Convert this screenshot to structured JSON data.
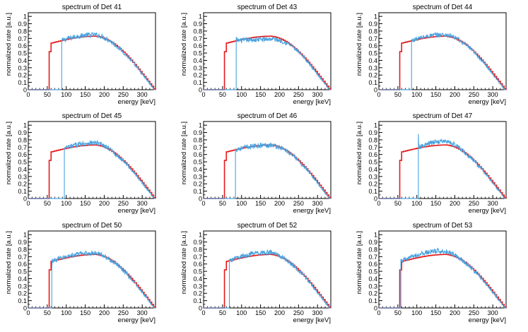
{
  "figure": {
    "background": "#ffffff"
  },
  "chart_data": [
    {
      "type": "line",
      "title": "spectrum of Det 41",
      "xlabel": "energy [keV]",
      "ylabel": "normalized rate [a.u.]",
      "xlim": [
        0,
        335
      ],
      "ylim": [
        0,
        1.05
      ],
      "x_ticks": [
        0,
        50,
        100,
        150,
        200,
        250,
        300
      ],
      "y_ticks": [
        0,
        0.1,
        0.2,
        0.3,
        0.4,
        0.5,
        0.6,
        0.7,
        0.8,
        0.9,
        1
      ],
      "grid": false,
      "series": [
        {
          "color": "#e41a1c",
          "style": "step",
          "cutoff_keV": 55,
          "cutoff_height": 0.52
        },
        {
          "color": "#4aa3df",
          "style": "noisy",
          "cutoff_keV": 88,
          "cutoff_height": 0.66,
          "bias": 0.02
        }
      ]
    },
    {
      "type": "line",
      "title": "spectrum of Det 43",
      "xlabel": "energy [keV]",
      "ylabel": "normalized rate [a.u.]",
      "xlim": [
        0,
        335
      ],
      "ylim": [
        0,
        1.05
      ],
      "x_ticks": [
        0,
        50,
        100,
        150,
        200,
        250,
        300
      ],
      "y_ticks": [
        0,
        0.1,
        0.2,
        0.3,
        0.4,
        0.5,
        0.6,
        0.7,
        0.8,
        0.9,
        1
      ],
      "grid": false,
      "series": [
        {
          "color": "#e41a1c",
          "style": "step",
          "cutoff_keV": 55,
          "cutoff_height": 0.52
        },
        {
          "color": "#4aa3df",
          "style": "noisy",
          "cutoff_keV": 86,
          "cutoff_height": 0.72,
          "bias": -0.04
        }
      ]
    },
    {
      "type": "line",
      "title": "spectrum of Det 44",
      "xlabel": "energy [keV]",
      "ylabel": "normalized rate [a.u.]",
      "xlim": [
        0,
        335
      ],
      "ylim": [
        0,
        1.05
      ],
      "x_ticks": [
        0,
        50,
        100,
        150,
        200,
        250,
        300
      ],
      "y_ticks": [
        0,
        0.1,
        0.2,
        0.3,
        0.4,
        0.5,
        0.6,
        0.7,
        0.8,
        0.9,
        1
      ],
      "grid": false,
      "series": [
        {
          "color": "#e41a1c",
          "style": "step",
          "cutoff_keV": 55,
          "cutoff_height": 0.52
        },
        {
          "color": "#4aa3df",
          "style": "noisy",
          "cutoff_keV": 86,
          "cutoff_height": 0.64,
          "bias": 0.02
        }
      ]
    },
    {
      "type": "line",
      "title": "spectrum of Det 45",
      "xlabel": "energy [keV]",
      "ylabel": "normalized rate [a.u.]",
      "xlim": [
        0,
        335
      ],
      "ylim": [
        0,
        1.05
      ],
      "x_ticks": [
        0,
        50,
        100,
        150,
        200,
        250,
        300
      ],
      "y_ticks": [
        0,
        0.1,
        0.2,
        0.3,
        0.4,
        0.5,
        0.6,
        0.7,
        0.8,
        0.9,
        1
      ],
      "grid": false,
      "series": [
        {
          "color": "#e41a1c",
          "style": "step",
          "cutoff_keV": 55,
          "cutoff_height": 0.52
        },
        {
          "color": "#4aa3df",
          "style": "noisy",
          "cutoff_keV": 95,
          "cutoff_height": 0.66,
          "bias": 0.03
        }
      ]
    },
    {
      "type": "line",
      "title": "spectrum of Det 46",
      "xlabel": "energy [keV]",
      "ylabel": "normalized rate [a.u.]",
      "xlim": [
        0,
        335
      ],
      "ylim": [
        0,
        1.05
      ],
      "x_ticks": [
        0,
        50,
        100,
        150,
        200,
        250,
        300
      ],
      "y_ticks": [
        0,
        0.1,
        0.2,
        0.3,
        0.4,
        0.5,
        0.6,
        0.7,
        0.8,
        0.9,
        1
      ],
      "grid": false,
      "series": [
        {
          "color": "#e41a1c",
          "style": "step",
          "cutoff_keV": 55,
          "cutoff_height": 0.52
        },
        {
          "color": "#4aa3df",
          "style": "noisy",
          "cutoff_keV": 84,
          "cutoff_height": 0.62,
          "bias": 0.0
        }
      ]
    },
    {
      "type": "line",
      "title": "spectrum of Det 47",
      "xlabel": "energy [keV]",
      "ylabel": "normalized rate [a.u.]",
      "xlim": [
        0,
        335
      ],
      "ylim": [
        0,
        1.05
      ],
      "x_ticks": [
        0,
        50,
        100,
        150,
        200,
        250,
        300
      ],
      "y_ticks": [
        0,
        0.1,
        0.2,
        0.3,
        0.4,
        0.5,
        0.6,
        0.7,
        0.8,
        0.9,
        1
      ],
      "grid": false,
      "series": [
        {
          "color": "#e41a1c",
          "style": "step",
          "cutoff_keV": 55,
          "cutoff_height": 0.52
        },
        {
          "color": "#4aa3df",
          "style": "noisy",
          "cutoff_keV": 104,
          "cutoff_height": 0.88,
          "bias": 0.05
        }
      ]
    },
    {
      "type": "line",
      "title": "spectrum of Det 50",
      "xlabel": "energy [keV]",
      "ylabel": "normalized rate [a.u.]",
      "xlim": [
        0,
        335
      ],
      "ylim": [
        0,
        1.05
      ],
      "x_ticks": [
        0,
        50,
        100,
        150,
        200,
        250,
        300
      ],
      "y_ticks": [
        0,
        0.1,
        0.2,
        0.3,
        0.4,
        0.5,
        0.6,
        0.7,
        0.8,
        0.9,
        1
      ],
      "grid": false,
      "series": [
        {
          "color": "#e41a1c",
          "style": "step",
          "cutoff_keV": 55,
          "cutoff_height": 0.52
        },
        {
          "color": "#4aa3df",
          "style": "noisy",
          "cutoff_keV": 62,
          "cutoff_height": 0.54,
          "bias": 0.02
        }
      ]
    },
    {
      "type": "line",
      "title": "spectrum of Det 52",
      "xlabel": "energy [keV]",
      "ylabel": "normalized rate [a.u.]",
      "xlim": [
        0,
        335
      ],
      "ylim": [
        0,
        1.05
      ],
      "x_ticks": [
        0,
        50,
        100,
        150,
        200,
        250,
        300
      ],
      "y_ticks": [
        0,
        0.1,
        0.2,
        0.3,
        0.4,
        0.5,
        0.6,
        0.7,
        0.8,
        0.9,
        1
      ],
      "grid": false,
      "series": [
        {
          "color": "#e41a1c",
          "style": "step",
          "cutoff_keV": 55,
          "cutoff_height": 0.52
        },
        {
          "color": "#4aa3df",
          "style": "noisy",
          "cutoff_keV": 68,
          "cutoff_height": 0.6,
          "bias": 0.03
        }
      ]
    },
    {
      "type": "line",
      "title": "spectrum of Det 53",
      "xlabel": "energy [keV]",
      "ylabel": "normalized rate [a.u.]",
      "xlim": [
        0,
        335
      ],
      "ylim": [
        0,
        1.05
      ],
      "x_ticks": [
        0,
        50,
        100,
        150,
        200,
        250,
        300
      ],
      "y_ticks": [
        0,
        0.1,
        0.2,
        0.3,
        0.4,
        0.5,
        0.6,
        0.7,
        0.8,
        0.9,
        1
      ],
      "grid": false,
      "series": [
        {
          "color": "#e41a1c",
          "style": "step",
          "cutoff_keV": 55,
          "cutoff_height": 0.52
        },
        {
          "color": "#4aa3df",
          "style": "noisy",
          "cutoff_keV": 58,
          "cutoff_height": 0.66,
          "bias": 0.05
        }
      ]
    }
  ]
}
